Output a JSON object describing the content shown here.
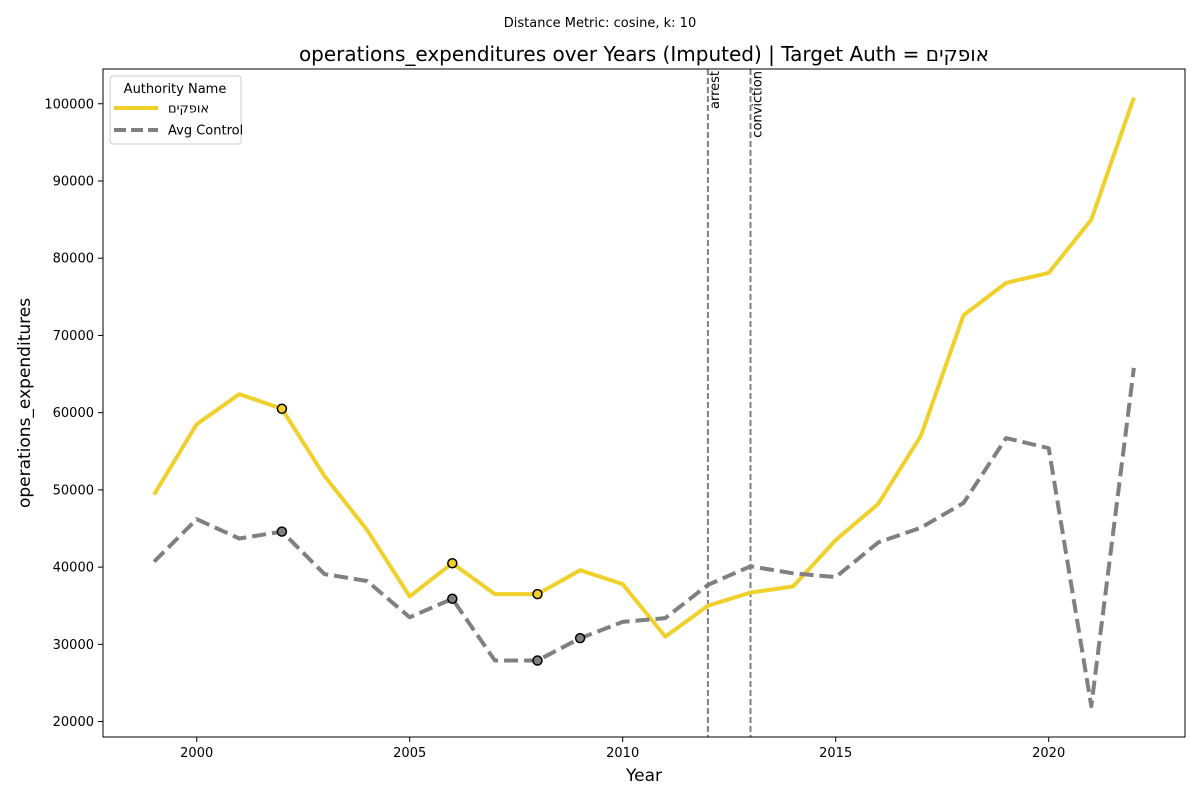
{
  "chart_data": {
    "type": "line",
    "suptitle": "Distance Metric: cosine, k: 10",
    "title": "operations_expenditures over Years (Imputed) | Target Auth = אופקים",
    "xlabel": "Year",
    "ylabel": "operations_expenditures",
    "xlim": [
      1997.8,
      2023.2
    ],
    "ylim": [
      18000,
      104500
    ],
    "xticks": [
      2000,
      2005,
      2010,
      2015,
      2020
    ],
    "yticks": [
      20000,
      30000,
      40000,
      50000,
      60000,
      70000,
      80000,
      90000,
      100000
    ],
    "x": [
      1999,
      2000,
      2001,
      2002,
      2003,
      2004,
      2005,
      2006,
      2007,
      2008,
      2009,
      2010,
      2011,
      2012,
      2013,
      2014,
      2015,
      2016,
      2017,
      2018,
      2019,
      2020,
      2021,
      2022
    ],
    "series": [
      {
        "name": "אופקים",
        "color": "#f0d02a",
        "style": "solid",
        "values": [
          49400,
          58500,
          62400,
          60500,
          51800,
          44800,
          36200,
          40500,
          36500,
          36500,
          39600,
          37800,
          31000,
          35000,
          36700,
          37500,
          43500,
          48200,
          57000,
          72600,
          76800,
          78100,
          85000,
          100800
        ],
        "imputed_years": [
          2002,
          2006,
          2008
        ]
      },
      {
        "name": "Avg Control",
        "color": "#808080",
        "style": "dashed",
        "values": [
          40700,
          46200,
          43700,
          44600,
          39100,
          38200,
          33500,
          35900,
          27900,
          27900,
          30800,
          32900,
          33400,
          37700,
          40100,
          39200,
          38700,
          43200,
          45100,
          48300,
          56700,
          55400,
          22000,
          65800
        ],
        "imputed_years": [
          2002,
          2006,
          2008,
          2009
        ]
      }
    ],
    "events": [
      {
        "year": 2012,
        "label": "arrest"
      },
      {
        "year": 2013,
        "label": "conviction"
      }
    ],
    "legend": {
      "title": "Authority Name",
      "placement": "top-left"
    },
    "grid": false
  }
}
